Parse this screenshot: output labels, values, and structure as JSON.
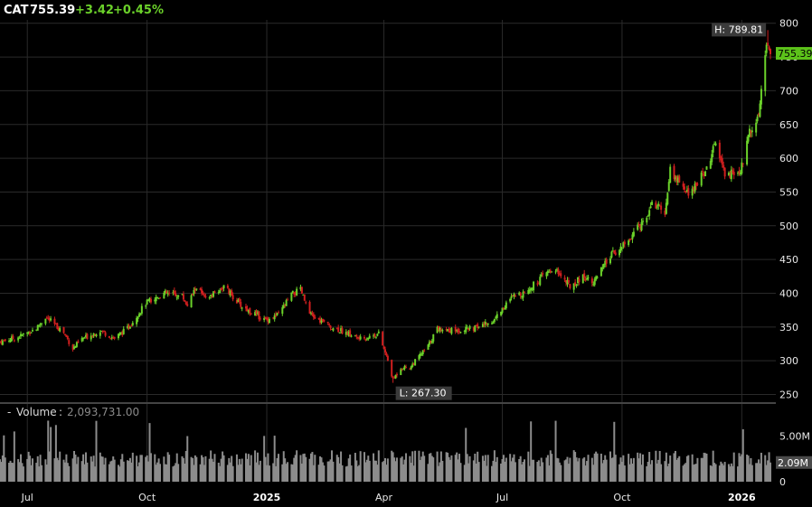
{
  "header": {
    "symbol": "CAT",
    "price": "755.39",
    "change": "+3.42",
    "change_pct": "+0.45%"
  },
  "colors": {
    "background": "#000000",
    "grid": "#2a2a2a",
    "up": "#6bd12a",
    "down": "#d01f1f",
    "volume": "#8c8c8c",
    "flag_bg": "#3a3a3a",
    "last_bg": "#5cc21a"
  },
  "chart_data": {
    "type": "candlestick",
    "symbol": "CAT",
    "x_range": [
      "2024-06-10",
      "2026-01-23"
    ],
    "price_axis": {
      "min": 240,
      "max": 805,
      "ticks": [
        800,
        750,
        700,
        650,
        600,
        550,
        500,
        450,
        400,
        350,
        300,
        250
      ]
    },
    "x_ticks": [
      {
        "label": "Jul",
        "date": "2024-07-01",
        "bold": false
      },
      {
        "label": "Oct",
        "date": "2024-10-01",
        "bold": false
      },
      {
        "label": "2025",
        "date": "2025-01-01",
        "bold": true
      },
      {
        "label": "Apr",
        "date": "2025-04-01",
        "bold": false
      },
      {
        "label": "Jul",
        "date": "2025-07-01",
        "bold": false
      },
      {
        "label": "Oct",
        "date": "2025-10-01",
        "bold": false
      },
      {
        "label": "2026",
        "date": "2026-01-01",
        "bold": true
      }
    ],
    "price_path": [
      [
        "2024-06-10",
        328
      ],
      [
        "2024-06-24",
        335
      ],
      [
        "2024-07-08",
        348
      ],
      [
        "2024-07-15",
        365
      ],
      [
        "2024-07-29",
        342
      ],
      [
        "2024-08-05",
        318
      ],
      [
        "2024-08-12",
        332
      ],
      [
        "2024-08-26",
        345
      ],
      [
        "2024-09-06",
        333
      ],
      [
        "2024-09-16",
        348
      ],
      [
        "2024-09-30",
        385
      ],
      [
        "2024-10-14",
        400
      ],
      [
        "2024-10-28",
        396
      ],
      [
        "2024-11-01",
        382
      ],
      [
        "2024-11-08",
        410
      ],
      [
        "2024-11-15",
        390
      ],
      [
        "2024-11-29",
        410
      ],
      [
        "2024-12-13",
        380
      ],
      [
        "2024-12-31",
        360
      ],
      [
        "2025-01-10",
        368
      ],
      [
        "2025-01-20",
        398
      ],
      [
        "2025-01-27",
        405
      ],
      [
        "2025-02-03",
        368
      ],
      [
        "2025-02-20",
        350
      ],
      [
        "2025-03-05",
        340
      ],
      [
        "2025-03-14",
        332
      ],
      [
        "2025-03-28",
        340
      ],
      [
        "2025-04-04",
        300
      ],
      [
        "2025-04-08",
        272
      ],
      [
        "2025-04-14",
        290
      ],
      [
        "2025-04-21",
        290
      ],
      [
        "2025-05-05",
        322
      ],
      [
        "2025-05-12",
        348
      ],
      [
        "2025-05-26",
        345
      ],
      [
        "2025-06-09",
        348
      ],
      [
        "2025-06-23",
        358
      ],
      [
        "2025-07-08",
        393
      ],
      [
        "2025-07-21",
        405
      ],
      [
        "2025-08-04",
        430
      ],
      [
        "2025-08-11",
        436
      ],
      [
        "2025-08-22",
        410
      ],
      [
        "2025-09-01",
        425
      ],
      [
        "2025-09-10",
        418
      ],
      [
        "2025-09-22",
        455
      ],
      [
        "2025-10-06",
        478
      ],
      [
        "2025-10-20",
        515
      ],
      [
        "2025-10-24",
        535
      ],
      [
        "2025-11-03",
        520
      ],
      [
        "2025-11-07",
        582
      ],
      [
        "2025-11-20",
        548
      ],
      [
        "2025-12-02",
        575
      ],
      [
        "2025-12-12",
        620
      ],
      [
        "2025-12-19",
        575
      ],
      [
        "2025-12-31",
        580
      ],
      [
        "2026-01-07",
        640
      ],
      [
        "2026-01-14",
        668
      ],
      [
        "2026-01-20",
        770
      ],
      [
        "2026-01-23",
        755
      ]
    ],
    "high": {
      "label": "H: 789.81",
      "value": 789.81,
      "date": "2026-01-21"
    },
    "low": {
      "label": "L: 267.30",
      "value": 267.3,
      "date": "2025-04-08"
    },
    "last": {
      "label": "755.39",
      "value": 755.39
    },
    "volume": {
      "label": "Volume",
      "current": "2,093,731.00",
      "axis_ticks": [
        {
          "label": "5.00M",
          "value": 5000000
        },
        {
          "label": "0",
          "value": 0
        }
      ],
      "last_label": "2.09M",
      "last_value": 2093731,
      "max": 7000000,
      "typical": 3000000
    }
  }
}
